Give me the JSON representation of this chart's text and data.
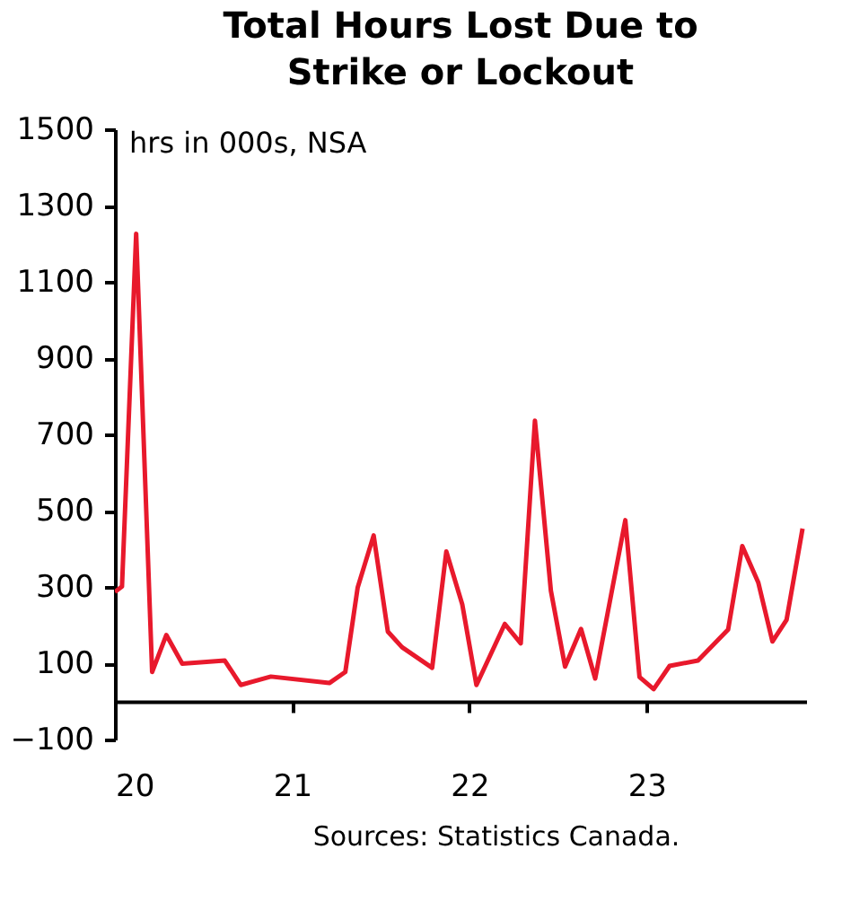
{
  "chart_data": {
    "type": "line",
    "title": "Total Hours Lost Due to Strike or Lockout",
    "ylabel": "hrs in 000s, NSA",
    "annotations": [
      "Sources: Statistics Canada."
    ],
    "x": [
      20.0,
      20.04,
      20.12,
      20.21,
      20.29,
      20.38,
      20.62,
      20.71,
      20.88,
      21.21,
      21.3,
      21.37,
      21.46,
      21.54,
      21.62,
      21.79,
      21.87,
      21.96,
      22.04,
      22.2,
      22.29,
      22.37,
      22.46,
      22.54,
      22.63,
      22.71,
      22.88,
      22.96,
      23.04,
      23.13,
      23.29,
      23.46,
      23.54,
      23.63,
      23.71,
      23.79,
      23.88
    ],
    "series": [
      {
        "color": "#e8192c",
        "values": [
          287,
          301,
          1226,
          77,
          174,
          99,
          107,
          43,
          65,
          48,
          77,
          299,
          435,
          183,
          142,
          88,
          393,
          254,
          43,
          203,
          152,
          736,
          290,
          91,
          190,
          60,
          475,
          64,
          32,
          93,
          107,
          188,
          407,
          312,
          157,
          214,
          453
        ]
      }
    ],
    "xlim": [
      20,
      23.9
    ],
    "xticks": [
      20,
      21,
      22,
      23
    ],
    "ylim": [
      -100,
      1500
    ],
    "yticks": [
      -100,
      100,
      300,
      500,
      700,
      900,
      1100,
      1300,
      1500
    ],
    "grid": false,
    "marker": "none",
    "line_style": "solid"
  }
}
